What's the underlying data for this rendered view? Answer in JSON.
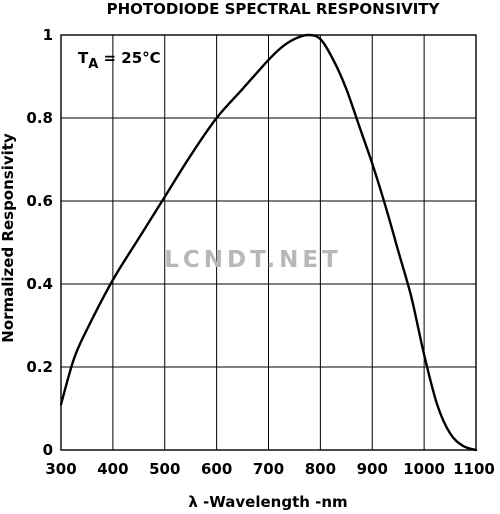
{
  "chart_data": {
    "type": "line",
    "title": "PHOTODIODE SPECTRAL RESPONSIVITY",
    "annotation": {
      "main": "T",
      "sub": "A",
      "rest": " = 25°C"
    },
    "watermark": "LCNDT.NET",
    "xlabel": "λ -Wavelength -nm",
    "ylabel": "Normalized Responsivity",
    "xlim": [
      300,
      1100
    ],
    "ylim": [
      0,
      1
    ],
    "x_ticks": [
      "300",
      "400",
      "500",
      "600",
      "700",
      "800",
      "900",
      "1000",
      "1100"
    ],
    "y_ticks": [
      "0",
      "0.2",
      "0.4",
      "0.6",
      "0.8",
      "1"
    ],
    "grid": true,
    "series": [
      {
        "x": [
          300,
          325,
          350,
          400,
          450,
          500,
          550,
          600,
          650,
          700,
          725,
          750,
          775,
          800,
          825,
          850,
          875,
          900,
          925,
          950,
          975,
          1000,
          1025,
          1050,
          1075,
          1100
        ],
        "values": [
          0.11,
          0.22,
          0.29,
          0.41,
          0.51,
          0.61,
          0.71,
          0.8,
          0.87,
          0.94,
          0.97,
          0.99,
          1.0,
          0.99,
          0.94,
          0.87,
          0.78,
          0.69,
          0.59,
          0.48,
          0.37,
          0.23,
          0.11,
          0.04,
          0.01,
          0.0
        ]
      }
    ]
  }
}
